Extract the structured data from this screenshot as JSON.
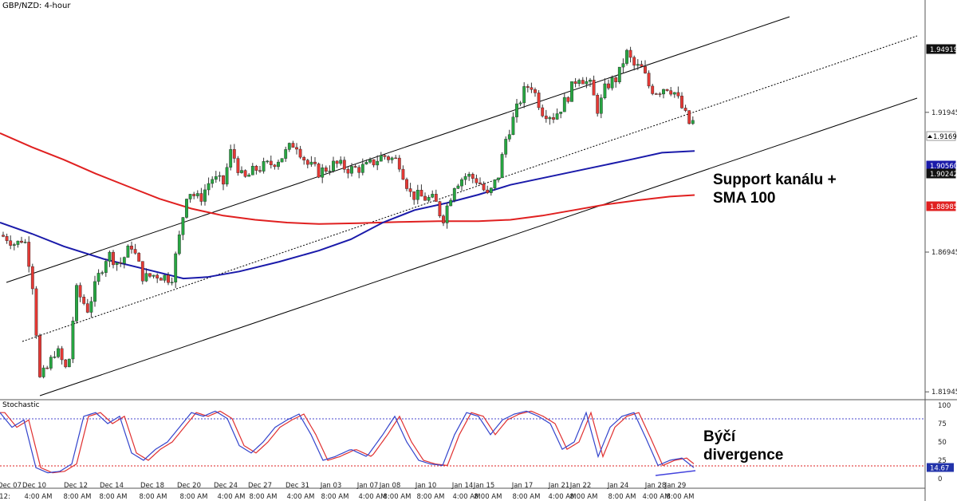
{
  "title": "GBP/NZD: 4-hour",
  "annotations": {
    "support_line1": "Support kanálu +",
    "support_line2": "SMA 100",
    "divergence_line1": "Býčí",
    "divergence_line2": "divergence"
  },
  "colors": {
    "bull": "#26a641",
    "bear": "#e53935",
    "sma_fast": "#1a1aaa",
    "sma_slow": "#e02020",
    "stoch_k": "#3344cc",
    "stoch_d": "#e03030",
    "divergence": "#4444dd"
  },
  "chart_data": [
    {
      "type": "line",
      "panel": "price",
      "ylim": [
        1.8175,
        1.9585
      ],
      "y_ticks": [
        "1.81945",
        "1.86945",
        "1.91945",
        "1.94919"
      ],
      "price_labels": [
        {
          "value": "1.94919",
          "style": "black"
        },
        {
          "value": "1.91695",
          "style": "white"
        },
        {
          "value": "1.90560",
          "style": "blue"
        },
        {
          "value": "1.90242",
          "style": "black"
        },
        {
          "value": "1.88985",
          "style": "red"
        }
      ],
      "x_labels": [
        "Dec 07",
        "Dec 10",
        "Dec 12",
        "Dec 14",
        "Dec 18",
        "Dec 20",
        "Dec 24",
        "Dec 27",
        "Dec 31",
        "Jan 03",
        "Jan 07",
        "Jan 08",
        "Jan 10",
        "Jan 14",
        "Jan 15",
        "Jan 17",
        "Jan 21",
        "Jan 22",
        "Jan 24",
        "Jan 28",
        "Jan 29"
      ],
      "x_sublabels": [
        "12:",
        "4:00 AM",
        "8:00 AM",
        "8:00 AM",
        "8:00 AM",
        "8:00 AM",
        "4:00 AM",
        "8:00 AM",
        "4:00 AM",
        "8:00 AM",
        "4:00 AM",
        "8:00 AM",
        "8:00 AM",
        "4:00 AM",
        "8:00 AM",
        "8:00 AM",
        "4:00 AM",
        "8:00 AM",
        "8:00 AM",
        "4:00 AM",
        "8:00 AM"
      ],
      "close_path": [
        [
          0,
          1.8755
        ],
        [
          10,
          1.8745
        ],
        [
          20,
          1.872
        ],
        [
          30,
          1.875
        ],
        [
          40,
          1.861
        ],
        [
          50,
          1.824
        ],
        [
          60,
          1.828
        ],
        [
          70,
          1.835
        ],
        [
          85,
          1.826
        ],
        [
          95,
          1.856
        ],
        [
          110,
          1.849
        ],
        [
          125,
          1.862
        ],
        [
          135,
          1.869
        ],
        [
          150,
          1.865
        ],
        [
          165,
          1.872
        ],
        [
          180,
          1.86
        ],
        [
          195,
          1.8615
        ],
        [
          215,
          1.86
        ],
        [
          225,
          1.875
        ],
        [
          235,
          1.892
        ],
        [
          250,
          1.888
        ],
        [
          265,
          1.896
        ],
        [
          280,
          1.894
        ],
        [
          290,
          1.906
        ],
        [
          305,
          1.895
        ],
        [
          320,
          1.899
        ],
        [
          340,
          1.901
        ],
        [
          355,
          1.904
        ],
        [
          370,
          1.909
        ],
        [
          385,
          1.901
        ],
        [
          400,
          1.898
        ],
        [
          420,
          1.901
        ],
        [
          440,
          1.899
        ],
        [
          460,
          1.9
        ],
        [
          480,
          1.904
        ],
        [
          500,
          1.902
        ],
        [
          515,
          1.89
        ],
        [
          530,
          1.889
        ],
        [
          545,
          1.888
        ],
        [
          555,
          1.881
        ],
        [
          570,
          1.894
        ],
        [
          585,
          1.897
        ],
        [
          600,
          1.895
        ],
        [
          612,
          1.889
        ],
        [
          625,
          1.897
        ],
        [
          635,
          1.911
        ],
        [
          645,
          1.918
        ],
        [
          655,
          1.926
        ],
        [
          665,
          1.93
        ],
        [
          680,
          1.92
        ],
        [
          695,
          1.918
        ],
        [
          710,
          1.924
        ],
        [
          725,
          1.933
        ],
        [
          740,
          1.929
        ],
        [
          750,
          1.92
        ],
        [
          760,
          1.929
        ],
        [
          775,
          1.932
        ],
        [
          785,
          1.941
        ],
        [
          795,
          1.936
        ],
        [
          805,
          1.935
        ],
        [
          815,
          1.928
        ],
        [
          825,
          1.927
        ],
        [
          835,
          1.929
        ],
        [
          845,
          1.927
        ],
        [
          855,
          1.921
        ],
        [
          865,
          1.915
        ],
        [
          873,
          1.917
        ]
      ],
      "sma_100": [
        [
          0,
          1.88
        ],
        [
          40,
          1.876
        ],
        [
          80,
          1.8715
        ],
        [
          130,
          1.867
        ],
        [
          180,
          1.8635
        ],
        [
          230,
          1.86
        ],
        [
          260,
          1.8605
        ],
        [
          300,
          1.8625
        ],
        [
          350,
          1.866
        ],
        [
          400,
          1.87
        ],
        [
          440,
          1.874
        ],
        [
          480,
          1.88
        ],
        [
          520,
          1.8845
        ],
        [
          560,
          1.887
        ],
        [
          600,
          1.89
        ],
        [
          640,
          1.8935
        ],
        [
          690,
          1.8965
        ],
        [
          740,
          1.8995
        ],
        [
          790,
          1.9025
        ],
        [
          830,
          1.905
        ],
        [
          871,
          1.9056
        ]
      ],
      "sma_200": [
        [
          0,
          1.912
        ],
        [
          40,
          1.907
        ],
        [
          80,
          1.9025
        ],
        [
          120,
          1.8975
        ],
        [
          160,
          1.893
        ],
        [
          200,
          1.8885
        ],
        [
          240,
          1.885
        ],
        [
          280,
          1.8825
        ],
        [
          320,
          1.881
        ],
        [
          360,
          1.88
        ],
        [
          400,
          1.8795
        ],
        [
          450,
          1.8798
        ],
        [
          500,
          1.8802
        ],
        [
          550,
          1.8805
        ],
        [
          600,
          1.8805
        ],
        [
          640,
          1.881
        ],
        [
          680,
          1.8825
        ],
        [
          720,
          1.8845
        ],
        [
          760,
          1.8865
        ],
        [
          800,
          1.888
        ],
        [
          840,
          1.8893
        ],
        [
          871,
          1.88985
        ]
      ]
    },
    {
      "type": "line",
      "panel": "stochastic",
      "title": "Stochastic",
      "ylim": [
        0,
        100
      ],
      "y_ticks": [
        "100",
        "75",
        "50",
        "25",
        "0"
      ],
      "levels": [
        80,
        20
      ],
      "current_value": "14.67",
      "stoch_k": [
        [
          0,
          90
        ],
        [
          15,
          70
        ],
        [
          30,
          80
        ],
        [
          45,
          15
        ],
        [
          60,
          8
        ],
        [
          75,
          10
        ],
        [
          90,
          20
        ],
        [
          105,
          85
        ],
        [
          120,
          90
        ],
        [
          135,
          75
        ],
        [
          150,
          85
        ],
        [
          165,
          35
        ],
        [
          180,
          25
        ],
        [
          195,
          40
        ],
        [
          210,
          50
        ],
        [
          225,
          70
        ],
        [
          240,
          90
        ],
        [
          255,
          85
        ],
        [
          270,
          92
        ],
        [
          285,
          82
        ],
        [
          300,
          45
        ],
        [
          315,
          35
        ],
        [
          330,
          50
        ],
        [
          345,
          70
        ],
        [
          360,
          80
        ],
        [
          375,
          88
        ],
        [
          390,
          60
        ],
        [
          405,
          25
        ],
        [
          420,
          30
        ],
        [
          440,
          40
        ],
        [
          460,
          30
        ],
        [
          480,
          60
        ],
        [
          495,
          85
        ],
        [
          510,
          50
        ],
        [
          525,
          25
        ],
        [
          540,
          20
        ],
        [
          555,
          18
        ],
        [
          570,
          60
        ],
        [
          585,
          90
        ],
        [
          600,
          85
        ],
        [
          615,
          60
        ],
        [
          630,
          80
        ],
        [
          645,
          88
        ],
        [
          660,
          92
        ],
        [
          675,
          85
        ],
        [
          690,
          75
        ],
        [
          705,
          40
        ],
        [
          720,
          50
        ],
        [
          735,
          90
        ],
        [
          750,
          30
        ],
        [
          765,
          70
        ],
        [
          780,
          85
        ],
        [
          795,
          90
        ],
        [
          810,
          55
        ],
        [
          825,
          18
        ],
        [
          840,
          25
        ],
        [
          855,
          28
        ],
        [
          870,
          15
        ]
      ]
    }
  ]
}
